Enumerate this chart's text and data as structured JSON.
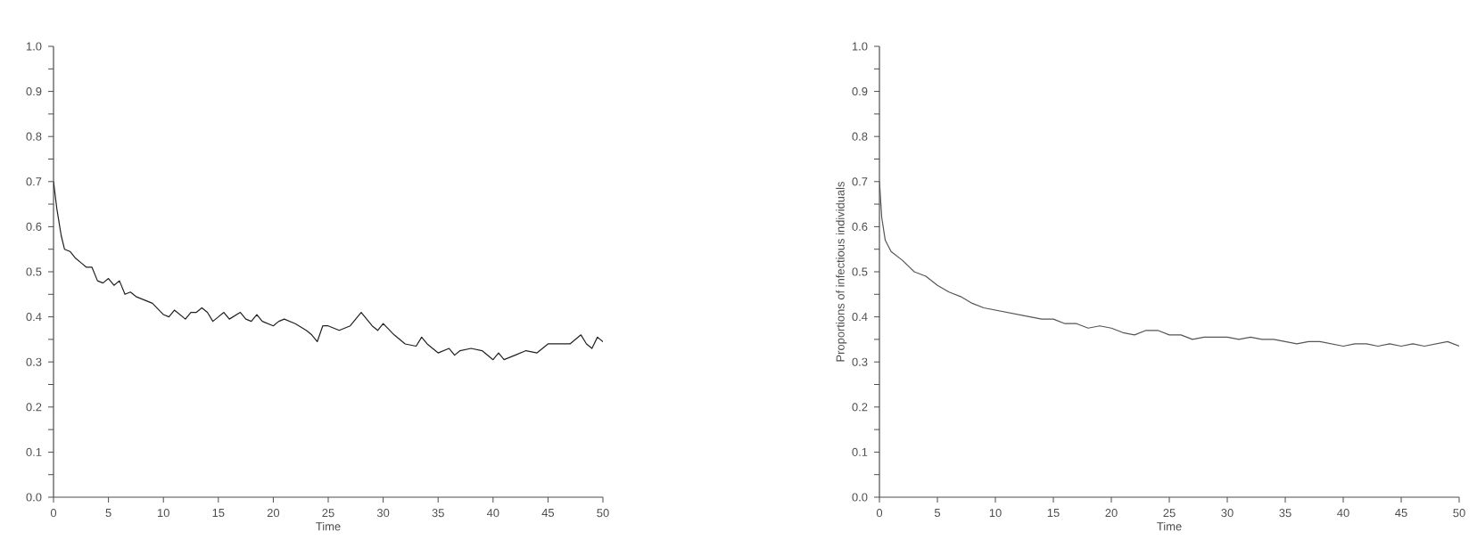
{
  "chart_data": [
    {
      "type": "line",
      "xlabel": "Time",
      "color": "#202020",
      "x": [
        0,
        0.3,
        0.7,
        1,
        1.5,
        2,
        2.5,
        3,
        3.5,
        4,
        4.5,
        5,
        5.5,
        6,
        6.5,
        7,
        7.5,
        8,
        9,
        10,
        10.5,
        11,
        12,
        12.5,
        13,
        13.5,
        14,
        14.5,
        15,
        15.5,
        16,
        17,
        17.5,
        18,
        18.5,
        19,
        20,
        20.5,
        21,
        22,
        23,
        23.5,
        24,
        24.5,
        25,
        26,
        27,
        28,
        29,
        29.5,
        30,
        31,
        32,
        33,
        33.5,
        34,
        35,
        36,
        36.5,
        37,
        38,
        39,
        40,
        40.5,
        41,
        42,
        43,
        44,
        45,
        46,
        47,
        48,
        48.5,
        49,
        49.5,
        50
      ],
      "values": [
        0.7,
        0.64,
        0.58,
        0.55,
        0.545,
        0.53,
        0.52,
        0.51,
        0.51,
        0.48,
        0.475,
        0.485,
        0.47,
        0.48,
        0.45,
        0.455,
        0.445,
        0.44,
        0.43,
        0.405,
        0.4,
        0.415,
        0.395,
        0.41,
        0.41,
        0.42,
        0.41,
        0.39,
        0.4,
        0.41,
        0.395,
        0.41,
        0.395,
        0.39,
        0.405,
        0.39,
        0.38,
        0.39,
        0.395,
        0.385,
        0.37,
        0.36,
        0.345,
        0.38,
        0.38,
        0.37,
        0.38,
        0.41,
        0.38,
        0.37,
        0.385,
        0.36,
        0.34,
        0.335,
        0.355,
        0.34,
        0.32,
        0.33,
        0.315,
        0.325,
        0.33,
        0.325,
        0.305,
        0.32,
        0.305,
        0.315,
        0.325,
        0.32,
        0.34,
        0.34,
        0.34,
        0.36,
        0.34,
        0.33,
        0.355,
        0.345
      ],
      "xlim": [
        0,
        50
      ],
      "ylim": [
        0,
        1
      ],
      "xticks": [
        0,
        5,
        10,
        15,
        20,
        25,
        30,
        35,
        40,
        45,
        50
      ],
      "yticks": [
        {
          "value": 0,
          "label": "0.0"
        },
        {
          "value": 0.05,
          "label": null
        },
        {
          "value": 0.1,
          "label": "0.1"
        },
        {
          "value": 0.15,
          "label": null
        },
        {
          "value": 0.2,
          "label": "0.2"
        },
        {
          "value": 0.25,
          "label": null
        },
        {
          "value": 0.3,
          "label": "0.3"
        },
        {
          "value": 0.35,
          "label": null
        },
        {
          "value": 0.4,
          "label": "0.4"
        },
        {
          "value": 0.45,
          "label": null
        },
        {
          "value": 0.5,
          "label": "0.5"
        },
        {
          "value": 0.55,
          "label": null
        },
        {
          "value": 0.6,
          "label": "0.6"
        },
        {
          "value": 0.65,
          "label": null
        },
        {
          "value": 0.7,
          "label": "0.7"
        },
        {
          "value": 0.75,
          "label": null
        },
        {
          "value": 0.8,
          "label": "0.8"
        },
        {
          "value": 0.85,
          "label": null
        },
        {
          "value": 0.9,
          "label": "0.9"
        },
        {
          "value": 0.95,
          "label": null
        },
        {
          "value": 1,
          "label": "1.0"
        }
      ]
    },
    {
      "type": "line",
      "xlabel": "Time",
      "ylabel": "Proportions of infectious individuals",
      "color": "#555555",
      "x": [
        0,
        0.2,
        0.5,
        1,
        2,
        3,
        4,
        5,
        6,
        7,
        8,
        9,
        10,
        11,
        12,
        13,
        14,
        15,
        16,
        17,
        18,
        19,
        20,
        21,
        22,
        23,
        24,
        25,
        26,
        27,
        28,
        29,
        30,
        31,
        32,
        33,
        34,
        35,
        36,
        37,
        38,
        39,
        40,
        41,
        42,
        43,
        44,
        45,
        46,
        47,
        48,
        49,
        50
      ],
      "values": [
        0.7,
        0.62,
        0.57,
        0.545,
        0.525,
        0.5,
        0.49,
        0.47,
        0.455,
        0.445,
        0.43,
        0.42,
        0.415,
        0.41,
        0.405,
        0.4,
        0.395,
        0.395,
        0.385,
        0.385,
        0.375,
        0.38,
        0.375,
        0.365,
        0.36,
        0.37,
        0.37,
        0.36,
        0.36,
        0.35,
        0.355,
        0.355,
        0.355,
        0.35,
        0.355,
        0.35,
        0.35,
        0.345,
        0.34,
        0.345,
        0.345,
        0.34,
        0.335,
        0.34,
        0.34,
        0.335,
        0.34,
        0.335,
        0.34,
        0.335,
        0.34,
        0.345,
        0.335
      ],
      "xlim": [
        0,
        50
      ],
      "ylim": [
        0,
        1
      ],
      "xticks": [
        0,
        5,
        10,
        15,
        20,
        25,
        30,
        35,
        40,
        45,
        50
      ],
      "yticks": [
        {
          "value": 0,
          "label": "0.0"
        },
        {
          "value": 0.05,
          "label": null
        },
        {
          "value": 0.1,
          "label": "0.1"
        },
        {
          "value": 0.15,
          "label": null
        },
        {
          "value": 0.2,
          "label": "0.2"
        },
        {
          "value": 0.25,
          "label": null
        },
        {
          "value": 0.3,
          "label": "0.3"
        },
        {
          "value": 0.35,
          "label": null
        },
        {
          "value": 0.4,
          "label": "0.4"
        },
        {
          "value": 0.45,
          "label": null
        },
        {
          "value": 0.5,
          "label": "0.5"
        },
        {
          "value": 0.55,
          "label": null
        },
        {
          "value": 0.6,
          "label": "0.6"
        },
        {
          "value": 0.65,
          "label": null
        },
        {
          "value": 0.7,
          "label": "0.7"
        },
        {
          "value": 0.75,
          "label": null
        },
        {
          "value": 0.8,
          "label": "0.8"
        },
        {
          "value": 0.85,
          "label": null
        },
        {
          "value": 0.9,
          "label": "0.9"
        },
        {
          "value": 0.95,
          "label": null
        },
        {
          "value": 1,
          "label": "1.0"
        }
      ]
    }
  ]
}
